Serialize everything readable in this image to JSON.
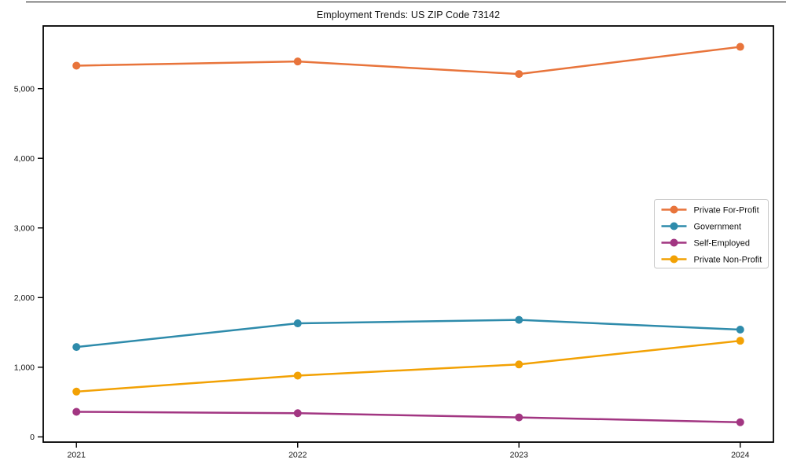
{
  "chart_data": {
    "type": "line",
    "title": "Employment Trends: US ZIP Code 73142",
    "x": [
      2021,
      2022,
      2023,
      2024
    ],
    "x_tick_labels": [
      "2021",
      "2022",
      "2023",
      "2024"
    ],
    "series": [
      {
        "name": "Private For-Profit",
        "color": "#e8743b",
        "values": [
          5330,
          5390,
          5210,
          5600
        ]
      },
      {
        "name": "Government",
        "color": "#2e8bab",
        "values": [
          1290,
          1630,
          1680,
          1540
        ]
      },
      {
        "name": "Self-Employed",
        "color": "#a23682",
        "values": [
          360,
          340,
          280,
          210
        ]
      },
      {
        "name": "Private Non-Profit",
        "color": "#f2a104",
        "values": [
          650,
          880,
          1040,
          1380
        ]
      }
    ],
    "ylabel": "",
    "xlabel": "",
    "yticks": [
      0,
      1000,
      2000,
      3000,
      4000,
      5000
    ],
    "ytick_labels": [
      "0",
      "1,000",
      "2,000",
      "3,000",
      "4,000",
      "5,000"
    ],
    "ylim": [
      -75,
      5900
    ],
    "xlim": [
      2020.85,
      2024.15
    ],
    "grid": false,
    "legend": {
      "position": "center right",
      "border": true
    }
  },
  "style": {
    "axis_color": "#000000",
    "legend_border_color": "#c9c9c9",
    "background": "#ffffff"
  }
}
